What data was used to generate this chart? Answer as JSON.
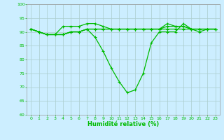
{
  "title": "",
  "xlabel": "Humidité relative (%)",
  "ylabel": "",
  "xlim": [
    -0.5,
    23.5
  ],
  "ylim": [
    60,
    100
  ],
  "yticks": [
    60,
    65,
    70,
    75,
    80,
    85,
    90,
    95,
    100
  ],
  "xticks": [
    0,
    1,
    2,
    3,
    4,
    5,
    6,
    7,
    8,
    9,
    10,
    11,
    12,
    13,
    14,
    15,
    16,
    17,
    18,
    19,
    20,
    21,
    22,
    23
  ],
  "background_color": "#cceeff",
  "grid_color": "#aacccc",
  "line_color": "#00bb00",
  "line_width": 0.9,
  "marker": "+",
  "marker_size": 3,
  "lines": [
    [
      91,
      90,
      89,
      89,
      92,
      92,
      92,
      93,
      93,
      92,
      91,
      91,
      91,
      91,
      91,
      91,
      91,
      91,
      91,
      91,
      91,
      91,
      91,
      91
    ],
    [
      91,
      90,
      89,
      89,
      89,
      90,
      90,
      91,
      88,
      83,
      77,
      72,
      68,
      69,
      75,
      86,
      90,
      90,
      90,
      93,
      91,
      90,
      91,
      91
    ],
    [
      91,
      90,
      89,
      89,
      89,
      90,
      90,
      91,
      91,
      91,
      91,
      91,
      91,
      91,
      91,
      91,
      91,
      92,
      92,
      92,
      91,
      91,
      91,
      91
    ],
    [
      91,
      90,
      89,
      89,
      89,
      90,
      90,
      91,
      91,
      91,
      91,
      91,
      91,
      91,
      91,
      91,
      91,
      93,
      92,
      92,
      91,
      91,
      91,
      91
    ]
  ]
}
